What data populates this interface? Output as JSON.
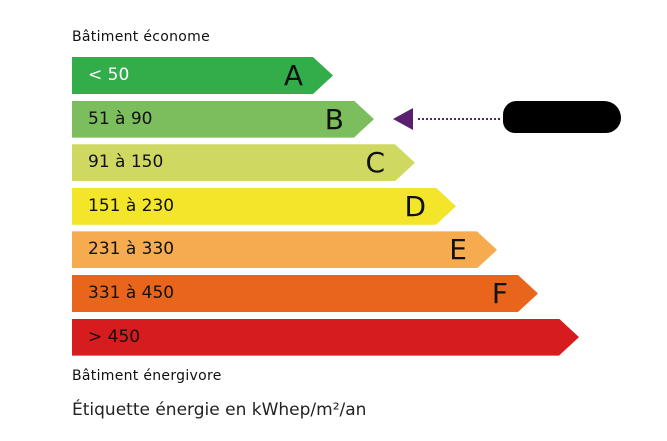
{
  "header": {
    "top_label": "Bâtiment économe",
    "bottom_label": "Bâtiment énergivore"
  },
  "classes": [
    {
      "range": "< 50",
      "letter": "A",
      "color": "#33ac4a",
      "text_color": "#ffffff"
    },
    {
      "range": "51 à 90",
      "letter": "B",
      "color": "#7cbd5e",
      "text_color": "#111111"
    },
    {
      "range": "91 à 150",
      "letter": "C",
      "color": "#cfd962",
      "text_color": "#111111"
    },
    {
      "range": "151 à 230",
      "letter": "D",
      "color": "#f2e52a",
      "text_color": "#111111"
    },
    {
      "range": "231 à 330",
      "letter": "E",
      "color": "#f5ab4e",
      "text_color": "#111111"
    },
    {
      "range": "331 à 450",
      "letter": "F",
      "color": "#e9651c",
      "text_color": "#111111"
    },
    {
      "range": "> 450",
      "letter": "",
      "color": "#d71c20",
      "text_color": "#111111"
    }
  ],
  "indicator": {
    "class": "B",
    "color": "#5a2070"
  },
  "footer": {
    "caption": "Étiquette énergie en kWhep/m²/an"
  }
}
